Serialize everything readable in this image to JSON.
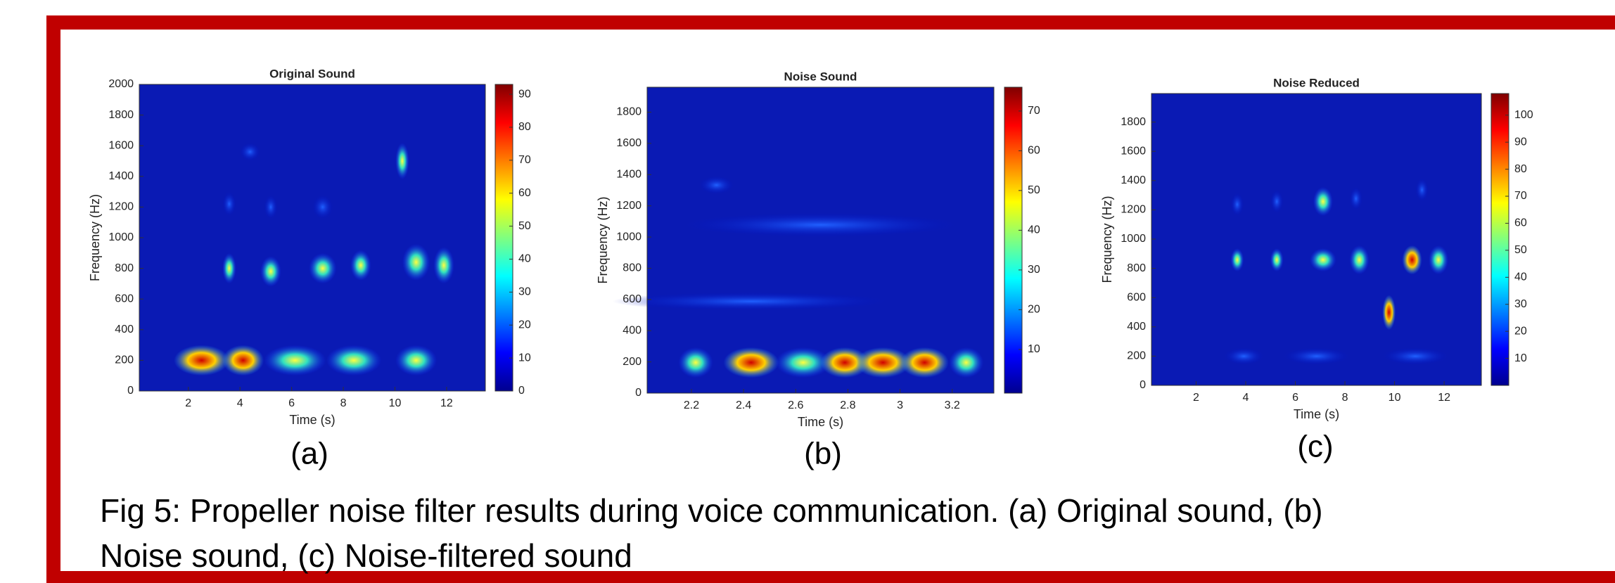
{
  "chart_data": [
    {
      "type": "spectrogram",
      "title": "Original Sound",
      "x_label": "Time (s)",
      "y_label": "Frequency (Hz)",
      "xlim": [
        0.1,
        13.5
      ],
      "ylim": [
        0,
        2000
      ],
      "xticks": [
        2,
        4,
        6,
        8,
        10,
        12
      ],
      "yticks": [
        0,
        200,
        400,
        600,
        800,
        1000,
        1200,
        1400,
        1600,
        1800,
        2000
      ],
      "colorbar_lim": [
        0,
        93
      ],
      "colorbar_ticks": [
        0,
        10,
        20,
        30,
        40,
        50,
        60,
        70,
        80,
        90
      ],
      "panel_label": "(a)"
    },
    {
      "type": "spectrogram",
      "title": "Noise Sound",
      "x_label": "Time (s)",
      "y_label": "Frequency (Hz)",
      "xlim": [
        2.03,
        3.36
      ],
      "ylim": [
        0,
        1960
      ],
      "xticks": [
        2.2,
        2.4,
        2.6,
        2.8,
        3,
        3.2
      ],
      "yticks": [
        0,
        200,
        400,
        600,
        800,
        1000,
        1200,
        1400,
        1600,
        1800
      ],
      "colorbar_lim": [
        -1,
        76
      ],
      "colorbar_ticks": [
        10,
        20,
        30,
        40,
        50,
        60,
        70
      ],
      "panel_label": "(b)"
    },
    {
      "type": "spectrogram",
      "title": "Noise Reduced",
      "x_label": "Time (s)",
      "y_label": "Frequency (Hz)",
      "xlim": [
        0.2,
        13.5
      ],
      "ylim": [
        0,
        1995
      ],
      "xticks": [
        2,
        4,
        6,
        8,
        10,
        12
      ],
      "yticks": [
        0,
        200,
        400,
        600,
        800,
        1000,
        1200,
        1400,
        1600,
        1800
      ],
      "colorbar_lim": [
        0,
        108
      ],
      "colorbar_ticks": [
        10,
        20,
        30,
        40,
        50,
        60,
        70,
        80,
        90,
        100
      ],
      "panel_label": "(c)"
    }
  ],
  "caption": [
    "Fig 5: Propeller noise filter results during voice communication. (a) Original sound, (b)",
    "Noise sound, (c) Noise-filtered sound"
  ]
}
